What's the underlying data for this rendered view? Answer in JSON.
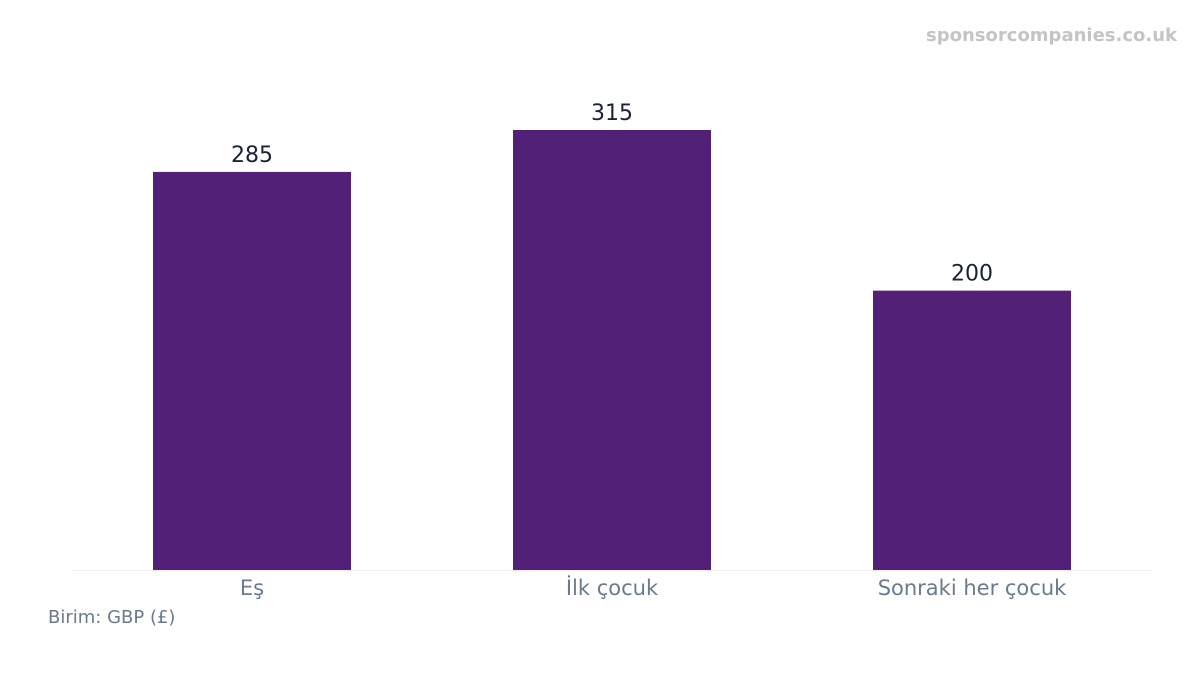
{
  "watermark": "sponsorcompanies.co.uk",
  "unit_note": "Birim: GBP (£)",
  "colors": {
    "bar": "#522177",
    "value_label": "#1a2238",
    "category_label": "#6b7a8c",
    "baseline": "#eeeeee"
  },
  "chart_data": {
    "type": "bar",
    "title": "",
    "xlabel": "",
    "ylabel": "",
    "categories": [
      "Eş",
      "İlk çocuk",
      "Sonraki her çocuk"
    ],
    "values": [
      285,
      315,
      200
    ],
    "ylim": [
      0,
      315
    ],
    "grid": false,
    "legend": "none"
  }
}
